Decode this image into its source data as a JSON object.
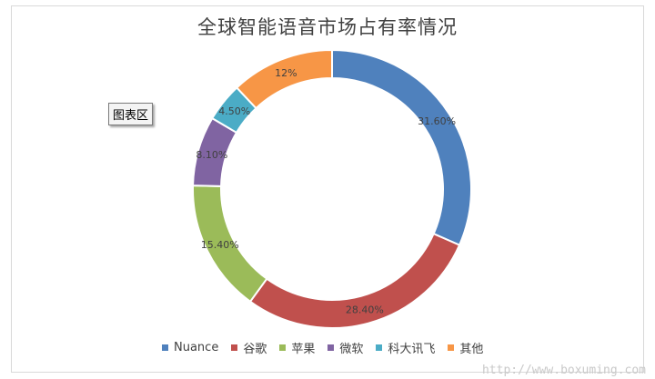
{
  "chart_data": {
    "type": "pie",
    "variant": "donut",
    "title": "全球智能语音市场占有率情况",
    "categories": [
      "Nuance",
      "谷歌",
      "苹果",
      "微软",
      "科大讯飞",
      "其他"
    ],
    "values": [
      31.6,
      28.4,
      15.4,
      8.1,
      4.5,
      12
    ],
    "data_labels": [
      "31.60%",
      "28.40%",
      "15.40%",
      "8.10%",
      "4.50%",
      "12%"
    ],
    "colors": [
      "#4f81bd",
      "#c0504d",
      "#9bbb59",
      "#8064a2",
      "#4bacc6",
      "#f79646"
    ],
    "legend_position": "bottom"
  },
  "tooltip": "图表区",
  "watermark": "http://www.boxuming.com"
}
